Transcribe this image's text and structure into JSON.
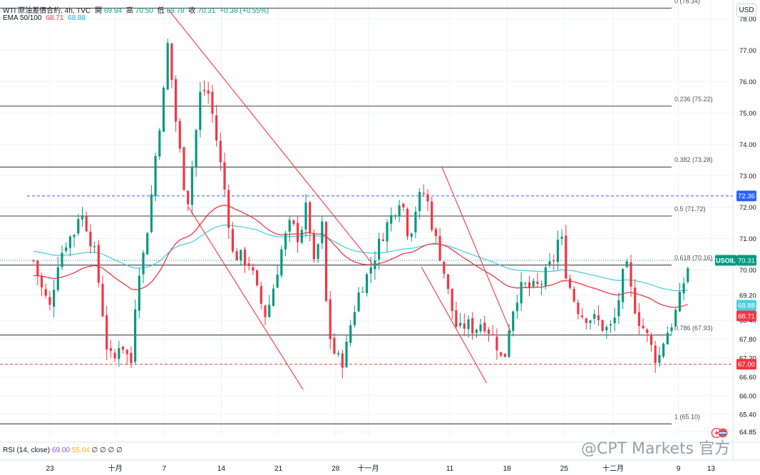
{
  "header": {
    "symbol": "WTI 原油差價合約, 4h, TVC",
    "open_label": "開",
    "open": "69.94",
    "high_label": "高",
    "high": "70.50",
    "low_label": "低",
    "low": "69.78",
    "close_label": "收",
    "close": "70.31",
    "change": "+0.38 (+0.55%)",
    "ema_label": "EMA 50/100",
    "ema50": "68.71",
    "ema100": "68.88"
  },
  "currency_button": "USD",
  "rsi": {
    "label": "RSI (14, close)",
    "value": "69.00",
    "ma": "55.04",
    "extras": "∅ ∅ ∅ ∅"
  },
  "watermark": "@CPT Markets 官方",
  "colors": {
    "up": "#089981",
    "down": "#f23645",
    "ema50": "#f23645",
    "ema100": "#4dd0e1",
    "fib": "#555555",
    "blue_level": "#2962ff",
    "red_level": "#f23645",
    "channel": "#f23645"
  },
  "chart_data": {
    "type": "candlestick",
    "symbol": "USOIL",
    "timeframe": "4h",
    "y_range": [
      64.7,
      78.6
    ],
    "x_ticks": [
      {
        "label": "23",
        "day": 0
      },
      {
        "label": "十月",
        "day": 8
      },
      {
        "label": "7",
        "day": 14
      },
      {
        "label": "14",
        "day": 21
      },
      {
        "label": "21",
        "day": 28
      },
      {
        "label": "28",
        "day": 35
      },
      {
        "label": "十一月",
        "day": 39
      },
      {
        "label": "11",
        "day": 49
      },
      {
        "label": "18",
        "day": 56
      },
      {
        "label": "25",
        "day": 63
      },
      {
        "label": "十二月",
        "day": 69
      },
      {
        "label": "9",
        "day": 77
      },
      {
        "label": "13",
        "day": 81
      }
    ],
    "y_ticks": [
      {
        "label": "78.00",
        "value": 78.0
      },
      {
        "label": "77.00",
        "value": 77.0
      },
      {
        "label": "76.00",
        "value": 76.0
      },
      {
        "label": "75.00",
        "value": 75.0
      },
      {
        "label": "74.00",
        "value": 74.0
      },
      {
        "label": "73.00",
        "value": 73.0
      },
      {
        "label": "72.00",
        "value": 72.0
      },
      {
        "label": "71.00",
        "value": 71.0
      },
      {
        "label": "70.00",
        "value": 70.0
      },
      {
        "label": "69.20",
        "value": 69.2
      },
      {
        "label": "68.40",
        "value": 68.4
      },
      {
        "label": "67.80",
        "value": 67.8
      },
      {
        "label": "67.20",
        "value": 67.2
      },
      {
        "label": "66.60",
        "value": 66.6
      },
      {
        "label": "66.00",
        "value": 66.0
      },
      {
        "label": "65.40",
        "value": 65.4
      },
      {
        "label": "64.85",
        "value": 64.85
      }
    ],
    "fib_levels": [
      {
        "label": "0 (78.34)",
        "value": 78.34
      },
      {
        "label": "0.236 (75.22)",
        "value": 75.22
      },
      {
        "label": "0.382 (73.28)",
        "value": 73.28
      },
      {
        "label": "0.5 (71.72)",
        "value": 71.72
      },
      {
        "label": "0.618 (70.16)",
        "value": 70.16
      },
      {
        "label": "0.786 (67.93)",
        "value": 67.93
      },
      {
        "label": "1 (65.10)",
        "value": 65.1
      }
    ],
    "price_tags": [
      {
        "label": "72.36",
        "value": 72.36,
        "color": "#2962ff"
      },
      {
        "label": "70.31",
        "value": 70.31,
        "color": "#089981",
        "name": "USOIL"
      },
      {
        "label": "68.88",
        "value": 68.88,
        "color": "#4dd0e1"
      },
      {
        "label": "68.71",
        "value": 68.71,
        "color": "#f23645"
      },
      {
        "label": "67.00",
        "value": 67.0,
        "color": "#f23645"
      }
    ],
    "horizontal_levels": [
      {
        "value": 72.36,
        "color": "#2962ff",
        "style": "dashed"
      },
      {
        "value": 67.0,
        "color": "#f23645",
        "style": "dashed"
      }
    ],
    "channel_lines": [
      [
        [
          14.5,
          78.3
        ],
        [
          39.5,
          70.2
        ]
      ],
      [
        [
          17,
          72.0
        ],
        [
          31,
          66.2
        ]
      ],
      [
        [
          48,
          73.3
        ],
        [
          56.5,
          68.0
        ]
      ],
      [
        [
          45.5,
          70.1
        ],
        [
          53.5,
          66.4
        ]
      ]
    ],
    "path_points": [
      [
        -2,
        70.3
      ],
      [
        -1,
        69.4
      ],
      [
        0,
        68.8
      ],
      [
        1,
        70.3
      ],
      [
        2,
        70.9
      ],
      [
        3,
        71.2
      ],
      [
        3.6,
        71.9
      ],
      [
        4.5,
        71.4
      ],
      [
        5.5,
        70.5
      ],
      [
        6.3,
        69.0
      ],
      [
        7.0,
        67.5
      ],
      [
        7.8,
        67.0
      ],
      [
        8.6,
        67.8
      ],
      [
        9.4,
        67.3
      ],
      [
        10.1,
        67.0
      ],
      [
        10.6,
        69.8
      ],
      [
        11.4,
        70.4
      ],
      [
        12.2,
        71.8
      ],
      [
        13.0,
        73.8
      ],
      [
        14.0,
        75.8
      ],
      [
        14.5,
        77.4
      ],
      [
        15.2,
        75.2
      ],
      [
        16.0,
        73.6
      ],
      [
        16.8,
        72.0
      ],
      [
        17.5,
        73.5
      ],
      [
        18.5,
        75.8
      ],
      [
        19.5,
        75.6
      ],
      [
        20.5,
        74.0
      ],
      [
        21.5,
        72.4
      ],
      [
        22.4,
        70.5
      ],
      [
        23.5,
        70.4
      ],
      [
        24.5,
        70.2
      ],
      [
        25.5,
        69.2
      ],
      [
        26.5,
        68.5
      ],
      [
        27.5,
        69.6
      ],
      [
        28.5,
        70.8
      ],
      [
        29.5,
        71.5
      ],
      [
        30.5,
        71.0
      ],
      [
        31.5,
        72.1
      ],
      [
        32.4,
        70.0
      ],
      [
        33.3,
        71.6
      ],
      [
        34.0,
        68.2
      ],
      [
        35.0,
        67.2
      ],
      [
        36.0,
        67.1
      ],
      [
        37.0,
        68.5
      ],
      [
        38.0,
        69.4
      ],
      [
        39.0,
        69.9
      ],
      [
        40.0,
        70.6
      ],
      [
        41.0,
        71.3
      ],
      [
        42.0,
        71.8
      ],
      [
        43.0,
        72.4
      ],
      [
        44.0,
        71.0
      ],
      [
        45.0,
        72.2
      ],
      [
        46.0,
        72.5
      ],
      [
        47.0,
        71.2
      ],
      [
        48.0,
        70.3
      ],
      [
        49.0,
        69.0
      ],
      [
        50.0,
        68.0
      ],
      [
        51.0,
        68.3
      ],
      [
        52.0,
        68.1
      ],
      [
        53.0,
        68.4
      ],
      [
        54.0,
        68.0
      ],
      [
        55.0,
        67.5
      ],
      [
        55.5,
        66.9
      ],
      [
        56.3,
        68.3
      ],
      [
        57.0,
        69.1
      ],
      [
        58.0,
        69.5
      ],
      [
        59.0,
        69.4
      ],
      [
        60.0,
        69.5
      ],
      [
        61.0,
        70.0
      ],
      [
        61.8,
        70.4
      ],
      [
        62.5,
        71.3
      ],
      [
        63.3,
        69.8
      ],
      [
        64.0,
        69.2
      ],
      [
        65.0,
        68.6
      ],
      [
        66.0,
        68.5
      ],
      [
        67.0,
        68.4
      ],
      [
        68.0,
        68.1
      ],
      [
        69.0,
        68.2
      ],
      [
        70.0,
        69.5
      ],
      [
        70.5,
        70.3
      ],
      [
        71.2,
        69.3
      ],
      [
        72.0,
        68.5
      ],
      [
        73.0,
        68.0
      ],
      [
        74.0,
        67.3
      ],
      [
        74.5,
        67.1
      ],
      [
        75.3,
        67.9
      ],
      [
        76.0,
        68.2
      ],
      [
        77.0,
        68.9
      ],
      [
        78.0,
        70.0
      ],
      [
        78.5,
        70.31
      ]
    ]
  }
}
